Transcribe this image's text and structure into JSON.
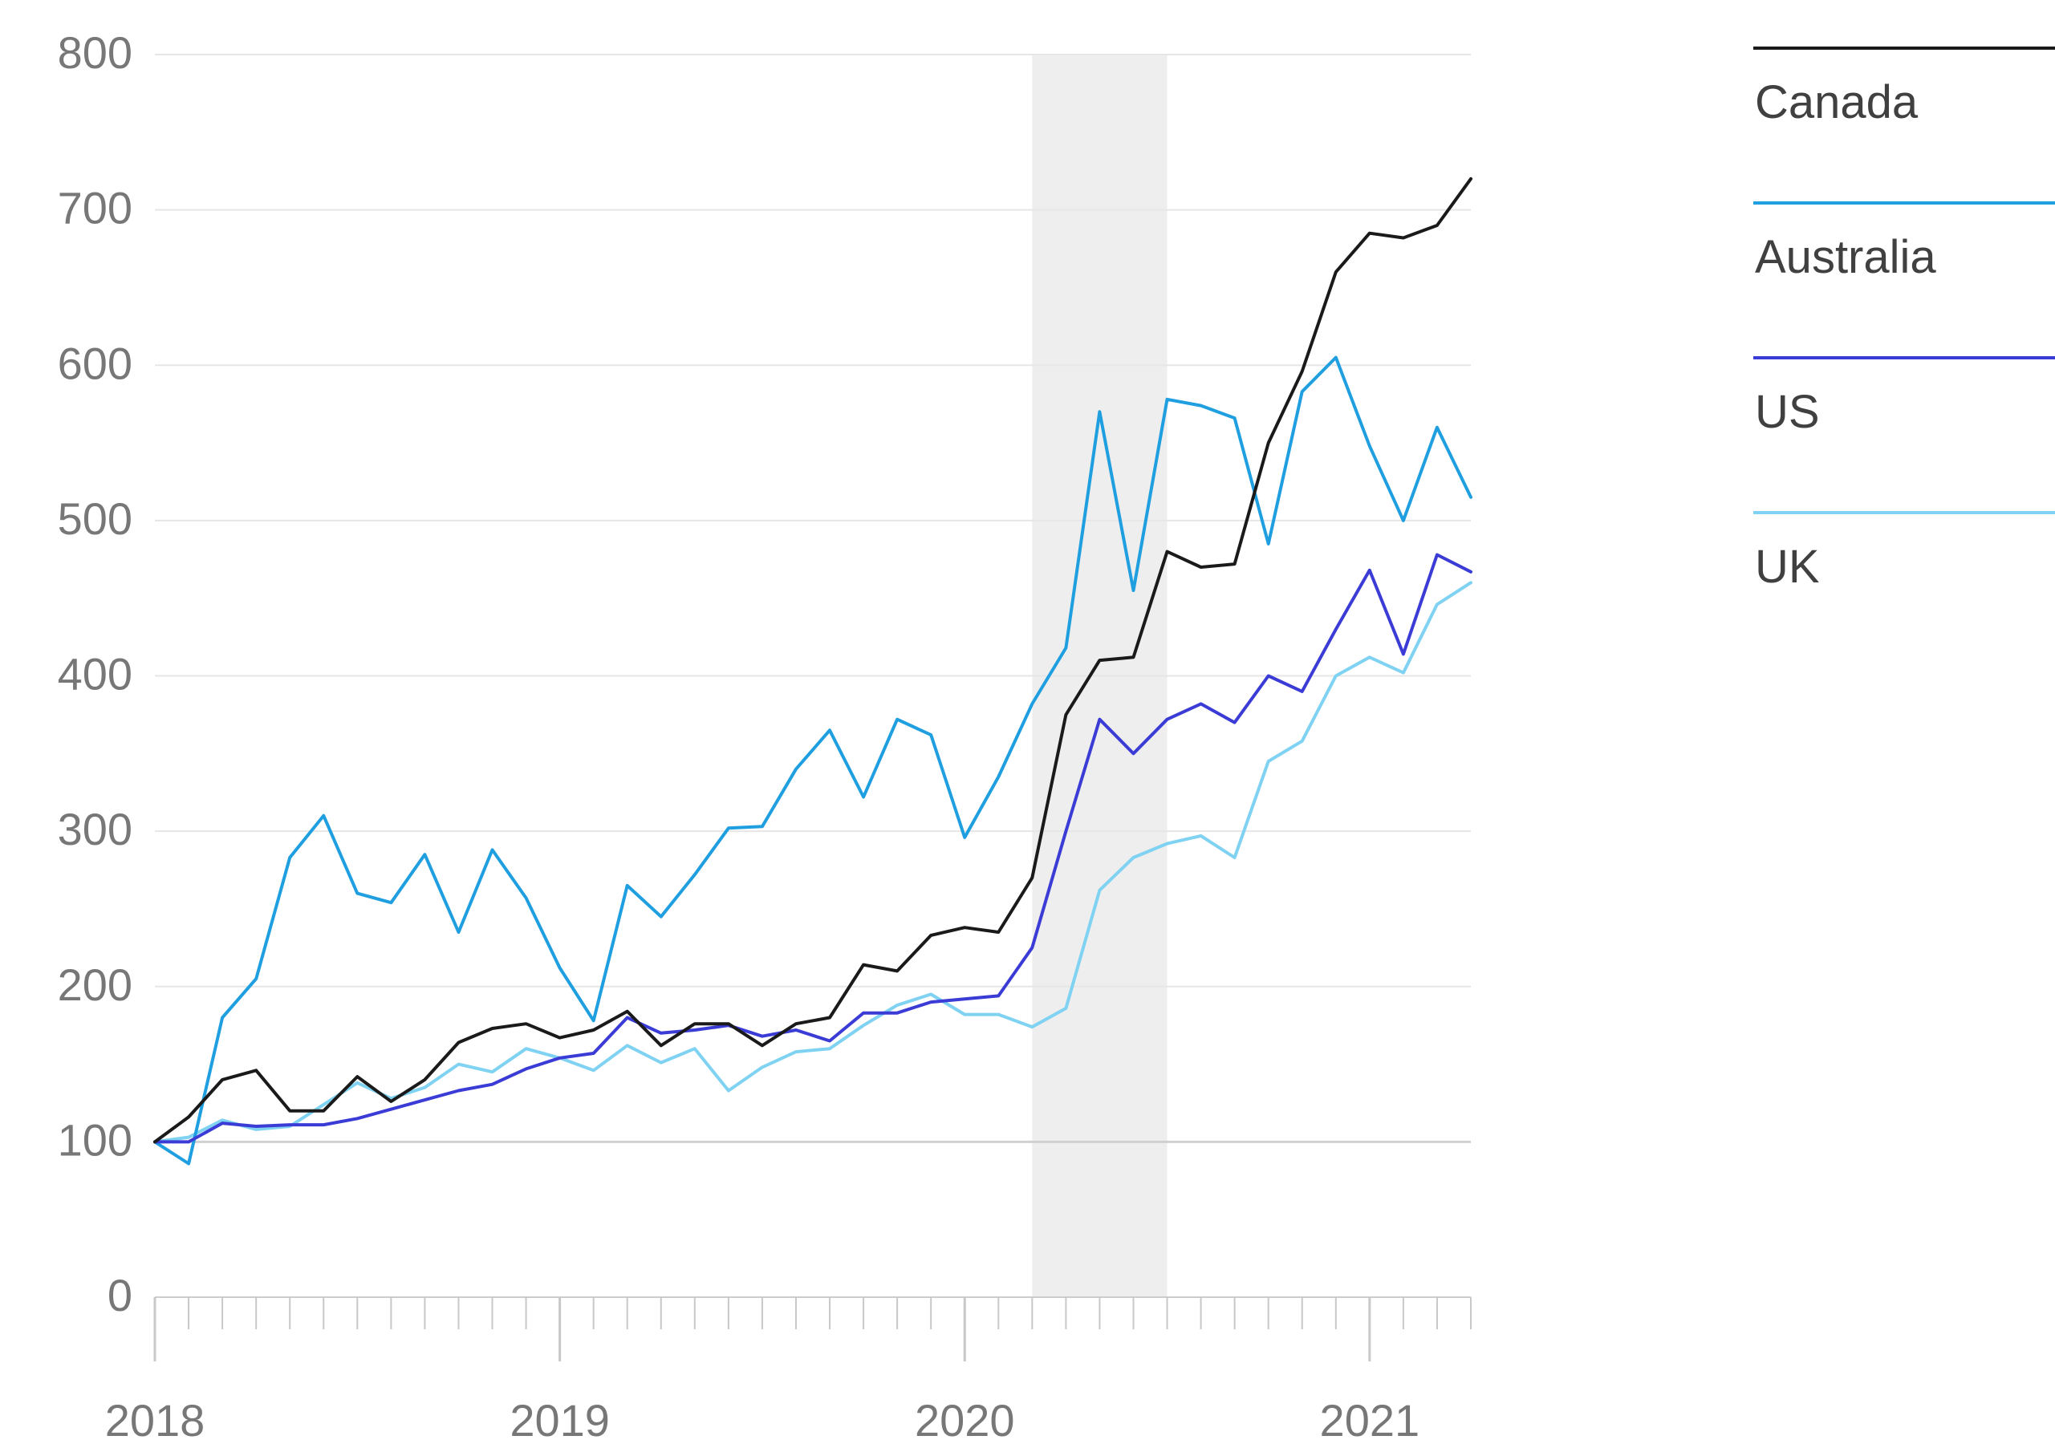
{
  "chart_data": {
    "type": "line",
    "ylim": [
      0,
      800
    ],
    "yticks": [
      "0",
      "100",
      "200",
      "300",
      "400",
      "500",
      "600",
      "700",
      "800"
    ],
    "xtick_labels": [
      "2018",
      "2019",
      "2020",
      "2021"
    ],
    "x_range": [
      "2018-01",
      "2021-04"
    ],
    "grid": true,
    "legend_placement": "top-right",
    "shaded_region": {
      "start": "2020-03",
      "end": "2020-07",
      "color": "#eeeeee"
    },
    "x": [
      "2018-01",
      "2018-02",
      "2018-03",
      "2018-04",
      "2018-05",
      "2018-06",
      "2018-07",
      "2018-08",
      "2018-09",
      "2018-10",
      "2018-11",
      "2018-12",
      "2019-01",
      "2019-02",
      "2019-03",
      "2019-04",
      "2019-05",
      "2019-06",
      "2019-07",
      "2019-08",
      "2019-09",
      "2019-10",
      "2019-11",
      "2019-12",
      "2020-01",
      "2020-02",
      "2020-03",
      "2020-04",
      "2020-05",
      "2020-06",
      "2020-07",
      "2020-08",
      "2020-09",
      "2020-10",
      "2020-11",
      "2020-12",
      "2021-01",
      "2021-02",
      "2021-03",
      "2021-04"
    ],
    "series": [
      {
        "name": "Canada",
        "color": "#1a1a1a",
        "values": [
          100,
          116,
          140,
          146,
          120,
          120,
          142,
          126,
          140,
          164,
          173,
          176,
          167,
          172,
          184,
          162,
          176,
          176,
          162,
          176,
          180,
          214,
          210,
          233,
          238,
          235,
          270,
          375,
          410,
          412,
          480,
          470,
          472,
          550,
          596,
          660,
          685,
          682,
          690,
          720
        ]
      },
      {
        "name": "Australia",
        "color": "#1f9fe0",
        "values": [
          100,
          86,
          180,
          205,
          283,
          310,
          260,
          254,
          285,
          235,
          288,
          257,
          212,
          178,
          265,
          245,
          272,
          302,
          303,
          340,
          365,
          322,
          372,
          362,
          296,
          335,
          382,
          418,
          570,
          455,
          578,
          574,
          566,
          485,
          583,
          605,
          548,
          500,
          560,
          515
        ]
      },
      {
        "name": "US",
        "color": "#3b3bd6",
        "values": [
          100,
          100,
          112,
          110,
          111,
          111,
          115,
          121,
          127,
          133,
          137,
          147,
          154,
          157,
          180,
          170,
          172,
          175,
          168,
          172,
          165,
          183,
          183,
          190,
          192,
          194,
          225,
          300,
          372,
          350,
          372,
          382,
          370,
          400,
          390,
          430,
          468,
          414,
          478,
          467
        ]
      },
      {
        "name": "UK",
        "color": "#7fd2f2",
        "values": [
          100,
          103,
          114,
          108,
          110,
          124,
          138,
          128,
          135,
          150,
          145,
          160,
          154,
          146,
          162,
          151,
          160,
          133,
          148,
          158,
          160,
          175,
          188,
          195,
          182,
          182,
          174,
          186,
          262,
          283,
          292,
          297,
          283,
          345,
          358,
          400,
          412,
          402,
          446,
          460
        ]
      }
    ]
  }
}
